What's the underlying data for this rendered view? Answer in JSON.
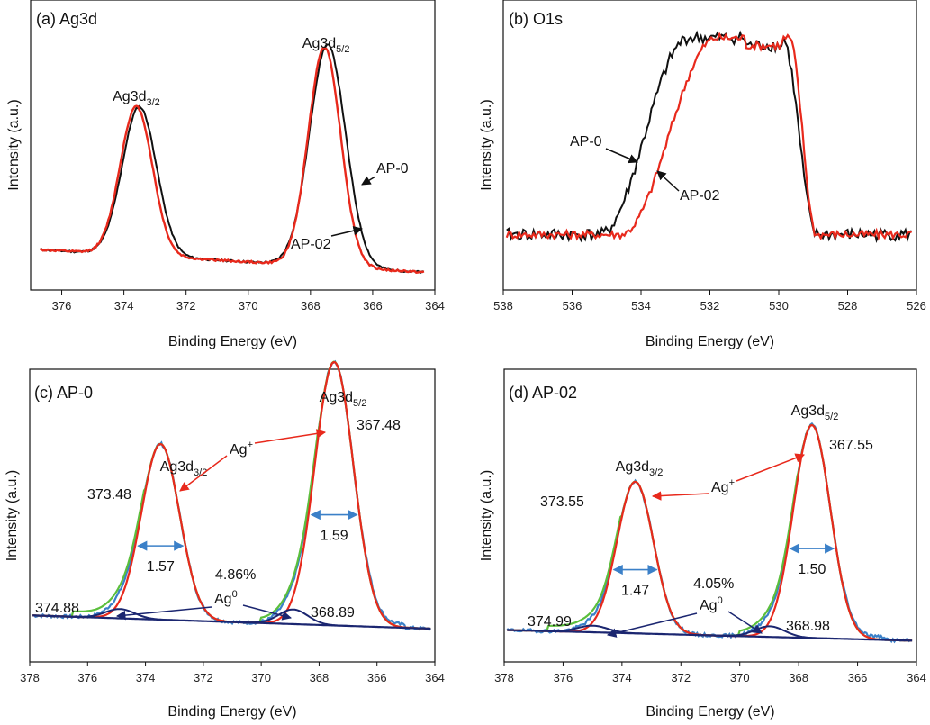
{
  "panels": [
    {
      "id": "a",
      "title": "(a) Ag3d",
      "type": "line",
      "xlabel": "Binding Energy (eV)",
      "ylabel": "Intensity (a.u.)",
      "xlim": [
        377,
        364
      ],
      "ylim": [
        0,
        1.15
      ],
      "xticks": [
        376,
        374,
        372,
        370,
        368,
        366,
        364
      ],
      "peaks_labels": [
        {
          "base": "Ag3d",
          "sub": "3/2",
          "at": 373.6
        },
        {
          "base": "Ag3d",
          "sub": "5/2",
          "at": 367.5
        }
      ],
      "series": [
        {
          "name": "AP-0",
          "color": "#111111",
          "baseline": [
            0.16,
            0.07
          ],
          "peaks": [
            {
              "c": 373.5,
              "h": 0.59,
              "w": 0.55
            },
            {
              "c": 367.45,
              "h": 0.88,
              "w": 0.58
            }
          ]
        },
        {
          "name": "AP-02",
          "color": "#e8291c",
          "baseline": [
            0.16,
            0.07
          ],
          "peaks": [
            {
              "c": 373.6,
              "h": 0.59,
              "w": 0.52
            },
            {
              "c": 367.55,
              "h": 0.87,
              "w": 0.52
            }
          ]
        }
      ],
      "series_labels": [
        {
          "text": "AP-0",
          "at": 366.6
        },
        {
          "text": "AP-02",
          "at": 366.8
        }
      ]
    },
    {
      "id": "b",
      "title": "(b) O1s",
      "type": "line",
      "xlabel": "Binding Energy (eV)",
      "ylabel": "Intensity (a.u.)",
      "xlim": [
        538,
        526
      ],
      "ylim": [
        0,
        1.15
      ],
      "xticks": [
        538,
        536,
        534,
        532,
        530,
        528,
        526
      ],
      "series": [
        {
          "name": "AP-0",
          "color": "#111111",
          "baseline": 0.22,
          "plateau": 1.0,
          "rise": [
            535.2,
            532.6
          ],
          "fall": [
            529.9,
            528.9
          ],
          "noise": 0.03
        },
        {
          "name": "AP-02",
          "color": "#e8291c",
          "baseline": 0.22,
          "plateau": 1.0,
          "rise": [
            534.6,
            531.8
          ],
          "fall": [
            529.7,
            528.9
          ],
          "noise": 0.02
        }
      ],
      "series_labels": [
        {
          "text": "AP-0",
          "at": 533.9
        },
        {
          "text": "AP-02",
          "at": 533.3
        }
      ]
    },
    {
      "id": "c",
      "title": "(c) AP-0",
      "type": "line",
      "xlabel": "Binding Energy (eV)",
      "ylabel": "Intensity (a.u.)",
      "xlim": [
        378,
        364
      ],
      "ylim": [
        0,
        1.1
      ],
      "xticks": [
        378,
        376,
        374,
        372,
        370,
        368,
        366,
        364
      ],
      "ion_label": "Ag",
      "ion_sup": "+",
      "metal_label": "Ag",
      "metal_sup": "0",
      "metal_pct": "4.86%",
      "peak_names": [
        {
          "base": "Ag3d",
          "sub": "3/2"
        },
        {
          "base": "Ag3d",
          "sub": "5/2"
        }
      ],
      "peak_energies": [
        "373.48",
        "367.48",
        "374.88",
        "368.89"
      ],
      "fwhm": [
        "1.57",
        "1.59"
      ],
      "fits": [
        {
          "name": "Ag+ 3d3/2",
          "c": 373.48,
          "h": 0.66,
          "w": 0.66
        },
        {
          "name": "Ag+ 3d5/2",
          "c": 367.48,
          "h": 0.99,
          "w": 0.67
        },
        {
          "name": "Ag0 3d3/2",
          "c": 374.88,
          "h": 0.035,
          "w": 0.5
        },
        {
          "name": "Ag0 3d5/2",
          "c": 368.89,
          "h": 0.055,
          "w": 0.5
        }
      ],
      "baseline": [
        0.175,
        0.125
      ],
      "colors": {
        "raw": "#3b80c8",
        "fit": "#e8291c",
        "envelope": "#5bbf3c",
        "component": "#1b2670",
        "arrow": "#3b80c8"
      }
    },
    {
      "id": "d",
      "title": "(d) AP-02",
      "type": "line",
      "xlabel": "Binding Energy (eV)",
      "ylabel": "Intensity (a.u.)",
      "xlim": [
        378,
        364
      ],
      "ylim": [
        0,
        1.1
      ],
      "xticks": [
        378,
        376,
        374,
        372,
        370,
        368,
        366,
        364
      ],
      "ion_label": "Ag",
      "ion_sup": "+",
      "metal_label": "Ag",
      "metal_sup": "0",
      "metal_pct": "4.05%",
      "peak_names": [
        {
          "base": "Ag3d",
          "sub": "3/2"
        },
        {
          "base": "Ag3d",
          "sub": "5/2"
        }
      ],
      "peak_energies": [
        "373.55",
        "367.55",
        "374.99",
        "368.98"
      ],
      "fwhm": [
        "1.47",
        "1.50"
      ],
      "fits": [
        {
          "name": "Ag+ 3d3/2",
          "c": 373.55,
          "h": 0.57,
          "w": 0.62
        },
        {
          "name": "Ag+ 3d5/2",
          "c": 367.55,
          "h": 0.8,
          "w": 0.63
        },
        {
          "name": "Ag0 3d3/2",
          "c": 374.99,
          "h": 0.025,
          "w": 0.5
        },
        {
          "name": "Ag0 3d5/2",
          "c": 368.98,
          "h": 0.04,
          "w": 0.5
        }
      ],
      "baseline": [
        0.12,
        0.08
      ],
      "colors": {
        "raw": "#3b80c8",
        "fit": "#e8291c",
        "envelope": "#5bbf3c",
        "component": "#1b2670",
        "arrow": "#3b80c8"
      }
    }
  ]
}
